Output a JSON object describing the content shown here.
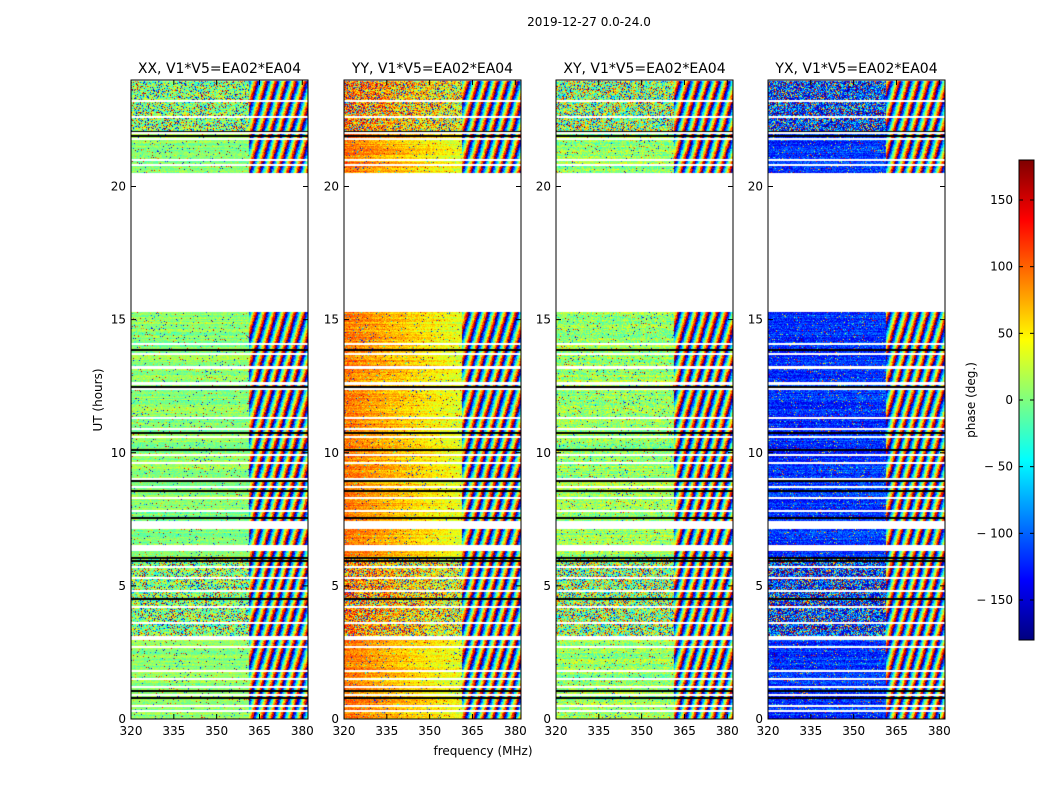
{
  "chart_data": {
    "type": "heatmap",
    "suptitle": "2019-12-27 0.0-24.0",
    "xlabel": "frequency (MHz)",
    "ylabel": "UT (hours)",
    "xlim": [
      320,
      382
    ],
    "ylim": [
      0,
      24
    ],
    "xticks": [
      320,
      335,
      350,
      365,
      380
    ],
    "yticks": [
      0,
      5,
      10,
      15,
      20
    ],
    "colorbar": {
      "label": "phase (deg.)",
      "range": [
        -180,
        180
      ],
      "ticks": [
        150,
        100,
        50,
        0,
        -50,
        -100,
        -150
      ],
      "tick_labels": [
        "150",
        "100",
        "50",
        "0",
        "− 50",
        "− 100",
        "− 150"
      ],
      "colormap": "jet",
      "colors": [
        "#00007f",
        "#0000ff",
        "#007fff",
        "#00ffff",
        "#7fff7f",
        "#ffff00",
        "#ff7f00",
        "#ff0000",
        "#7f0000"
      ]
    },
    "panels": [
      {
        "title": "XX, V1*V5=EA02*EA04",
        "baseline_phase": 5,
        "trend": 0,
        "noise": 35
      },
      {
        "title": "YY, V1*V5=EA02*EA04",
        "baseline_phase": 95,
        "trend": -90,
        "noise": 40
      },
      {
        "title": "XY, V1*V5=EA02*EA04",
        "baseline_phase": 10,
        "trend": 0,
        "noise": 60
      },
      {
        "title": "YX, V1*V5=EA02*EA04",
        "baseline_phase": -120,
        "trend": 10,
        "noise": 55
      }
    ],
    "data_gaps_hours": [
      [
        20.5,
        15.3
      ],
      [
        7.45,
        7.15
      ],
      [
        6.55,
        6.3
      ],
      [
        3.1,
        2.95
      ],
      [
        24.0,
        23.95
      ]
    ],
    "rfi_region_start_mhz": 361,
    "empty_row_hours": [
      23.2,
      22.6,
      22.0,
      21.8,
      21.0,
      20.8,
      14.1,
      13.7,
      13.2,
      12.6,
      12.4,
      11.3,
      10.9,
      10.6,
      9.9,
      9.6,
      9.0,
      8.7,
      8.3,
      7.8,
      5.7,
      5.3,
      4.8,
      4.2,
      3.6,
      2.7,
      1.8,
      1.5,
      1.2,
      0.9,
      0.5,
      0.3
    ],
    "dark_row_hours": [
      22.05,
      21.9,
      13.85,
      12.45,
      10.75,
      10.1,
      8.95,
      8.55,
      7.55,
      6.05,
      5.95,
      4.5,
      1.05,
      0.8
    ]
  }
}
